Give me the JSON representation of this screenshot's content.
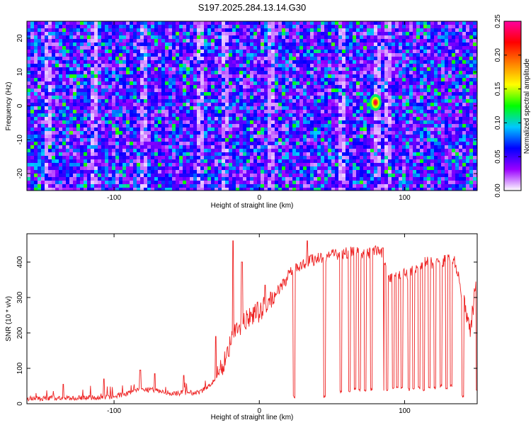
{
  "title": "S197.2025.284.13.14.G30",
  "chart_data": [
    {
      "type": "heatmap",
      "title": "S197.2025.284.13.14.G30",
      "xlabel": "Height of straight line (km)",
      "ylabel": "Frequency (Hz)",
      "xlim": [
        -160,
        150
      ],
      "ylim": [
        -25,
        25
      ],
      "xticks": [
        -100,
        0,
        100
      ],
      "xtick_labels": [
        "-100",
        "0",
        "100"
      ],
      "yticks": [
        -20,
        -10,
        0,
        10,
        20
      ],
      "ytick_labels": [
        "-20",
        "-10",
        "0",
        "10",
        "20"
      ],
      "colorbar": {
        "label": "Normalized spectral amplitude",
        "range": [
          0,
          0.25
        ],
        "ticks": [
          "0.00",
          "0.05",
          "0.10",
          "0.15",
          "0.20",
          "0.25"
        ],
        "colors": [
          "#ffffff",
          "#9a00ff",
          "#0000ff",
          "#00c8ff",
          "#00ff00",
          "#ffff00",
          "#ff8000",
          "#ff0000",
          "#ff00a0"
        ]
      },
      "peak": {
        "x": 80,
        "y": 1,
        "value": 0.25
      },
      "vertical_clear_bands_x": [
        -147,
        -115,
        -80,
        -42,
        -25,
        8,
        55,
        80,
        88
      ],
      "grid": false
    },
    {
      "type": "line",
      "xlabel": "Height of straight line (km)",
      "ylabel": "SNR (10 * v/v)",
      "xlim": [
        -160,
        150
      ],
      "ylim": [
        0,
        480
      ],
      "xticks": [
        -100,
        0,
        100
      ],
      "xtick_labels": [
        "-100",
        "0",
        "100"
      ],
      "yticks": [
        0,
        100,
        200,
        300,
        400
      ],
      "ytick_labels": [
        "0",
        "100",
        "200",
        "300",
        "400"
      ],
      "line_color": "#ee2222",
      "grid": false,
      "series": [
        {
          "x": [
            -160,
            -150,
            -140,
            -130,
            -120,
            -110,
            -100,
            -95,
            -90,
            -85,
            -80,
            -75,
            -70,
            -65,
            -60,
            -55,
            -50,
            -45,
            -40,
            -35,
            -30,
            -25,
            -20,
            -15,
            -10,
            -5,
            0,
            5,
            10,
            15,
            20,
            25,
            30,
            35,
            40,
            45,
            50,
            55,
            60,
            65,
            70,
            75,
            80,
            85,
            90,
            95,
            100,
            105,
            110,
            115,
            120,
            125,
            130,
            135,
            140,
            145,
            150
          ],
          "values": [
            15,
            15,
            17,
            15,
            18,
            17,
            20,
            25,
            30,
            40,
            40,
            38,
            38,
            32,
            30,
            30,
            32,
            30,
            35,
            50,
            70,
            110,
            170,
            210,
            230,
            250,
            260,
            280,
            300,
            330,
            360,
            385,
            395,
            405,
            410,
            415,
            420,
            420,
            425,
            430,
            420,
            425,
            430,
            420,
            360,
            360,
            365,
            370,
            395,
            400,
            395,
            400,
            410,
            400,
            300,
            200,
            360
          ]
        }
      ],
      "dropouts": [
        {
          "x": 24,
          "y": 20
        },
        {
          "x": 45,
          "y": 20
        },
        {
          "x": 56,
          "y": 35
        },
        {
          "x": 62,
          "y": 35
        },
        {
          "x": 66,
          "y": 40
        },
        {
          "x": 69,
          "y": 40
        },
        {
          "x": 73,
          "y": 35
        },
        {
          "x": 77,
          "y": 40
        },
        {
          "x": 85,
          "y": 35
        },
        {
          "x": 88,
          "y": 40
        },
        {
          "x": 92,
          "y": 45
        },
        {
          "x": 95,
          "y": 45
        },
        {
          "x": 98,
          "y": 45
        },
        {
          "x": 103,
          "y": 40
        },
        {
          "x": 106,
          "y": 45
        },
        {
          "x": 110,
          "y": 45
        },
        {
          "x": 113,
          "y": 40
        },
        {
          "x": 117,
          "y": 45
        },
        {
          "x": 121,
          "y": 45
        },
        {
          "x": 125,
          "y": 50
        },
        {
          "x": 129,
          "y": 45
        },
        {
          "x": 132,
          "y": 50
        },
        {
          "x": 140,
          "y": 20
        },
        {
          "x": 150,
          "y": 40
        }
      ],
      "spikes": [
        {
          "x": -135,
          "y": 55
        },
        {
          "x": -107,
          "y": 70
        },
        {
          "x": -82,
          "y": 95
        },
        {
          "x": -72,
          "y": 85
        },
        {
          "x": -52,
          "y": 80
        },
        {
          "x": -30,
          "y": 190
        },
        {
          "x": -18,
          "y": 460
        },
        {
          "x": -12,
          "y": 400
        },
        {
          "x": 4,
          "y": 335
        },
        {
          "x": 33,
          "y": 460
        },
        {
          "x": 85,
          "y": 440
        }
      ]
    }
  ]
}
